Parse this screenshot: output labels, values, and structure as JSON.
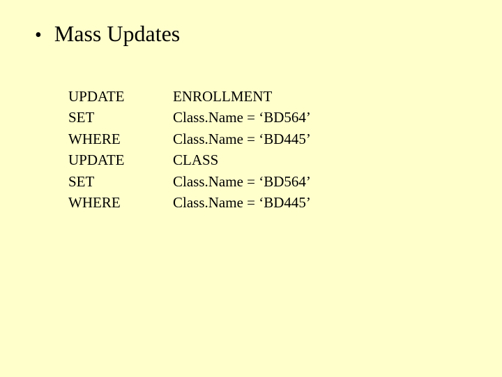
{
  "colors": {
    "background": "#ffffcc",
    "text": "#000000"
  },
  "typography": {
    "heading_family": "Times New Roman",
    "heading_size_pt": 32,
    "body_size_pt": 21
  },
  "bullet_glyph": "•",
  "heading": "Mass Updates",
  "sql": {
    "rows": [
      {
        "keyword": "UPDATE",
        "value": "ENROLLMENT"
      },
      {
        "keyword": "SET",
        "value": "Class.Name = ‘BD564’"
      },
      {
        "keyword": "WHERE",
        "value": "Class.Name = ‘BD445’"
      },
      {
        "keyword": "UPDATE",
        "value": "CLASS"
      },
      {
        "keyword": "SET",
        "value": "Class.Name = ‘BD564’"
      },
      {
        "keyword": "WHERE",
        "value": "Class.Name = ‘BD445’"
      }
    ]
  }
}
